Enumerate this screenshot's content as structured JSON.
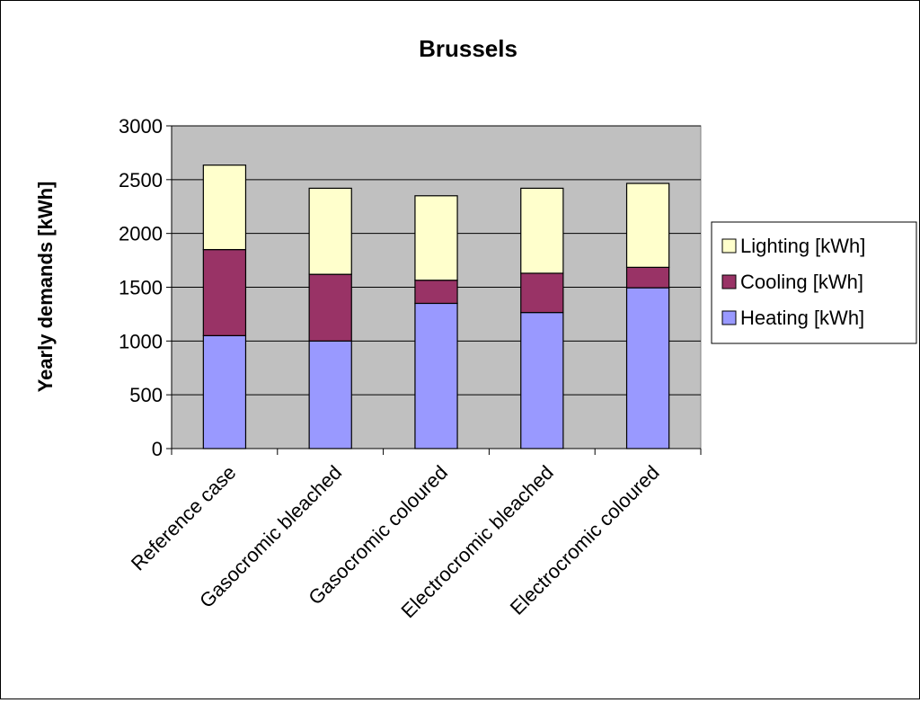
{
  "chart_data": {
    "type": "bar",
    "stacked": true,
    "title": "Brussels",
    "ylabel": "Yearly demands [kWh]",
    "xlabel": "",
    "ylim": [
      0,
      3000
    ],
    "yticks": [
      0,
      500,
      1000,
      1500,
      2000,
      2500,
      3000
    ],
    "categories": [
      "Reference case",
      "Gasocromic bleached",
      "Gasocromic coloured",
      "Electrocromic bleached",
      "Electrocromic coloured"
    ],
    "series": [
      {
        "name": "Heating [kWh]",
        "color": "#9999ff",
        "values": [
          1050,
          1000,
          1350,
          1265,
          1495
        ]
      },
      {
        "name": "Cooling [kWh]",
        "color": "#993366",
        "values": [
          800,
          620,
          215,
          365,
          190
        ]
      },
      {
        "name": "Lighting [kWh]",
        "color": "#ffffcc",
        "values": [
          785,
          800,
          785,
          790,
          780
        ]
      }
    ],
    "legend": {
      "placement": "right",
      "order": [
        "Lighting [kWh]",
        "Cooling [kWh]",
        "Heating [kWh]"
      ]
    },
    "grid": true,
    "plot_background": "#c0c0c0"
  }
}
